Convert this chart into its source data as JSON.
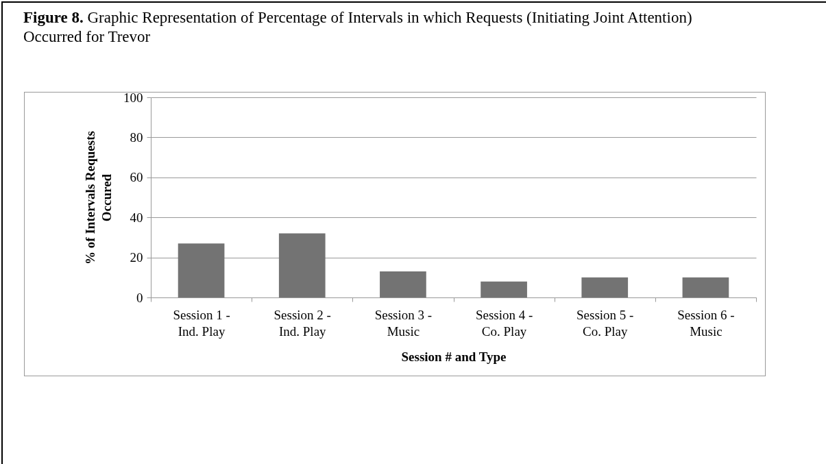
{
  "chart_data": {
    "type": "bar",
    "title": "Figure 8. Graphic Representation of Percentage of Intervals in which Requests (Initiating Joint Attention) Occurred for Trevor",
    "xlabel": "Session # and Type",
    "ylabel": "% of Intervals Requests Occured",
    "categories": [
      "Session 1 - Ind. Play",
      "Session 2 - Ind. Play",
      "Session 3 - Music",
      "Session 4 - Co. Play",
      "Session 5 - Co. Play",
      "Session 6 - Music"
    ],
    "values": [
      27,
      32,
      13,
      8,
      10,
      10
    ],
    "color": "#737373",
    "ylim": [
      0,
      100
    ],
    "yticks": [
      0,
      20,
      40,
      60,
      80,
      100
    ],
    "grid": "y"
  }
}
